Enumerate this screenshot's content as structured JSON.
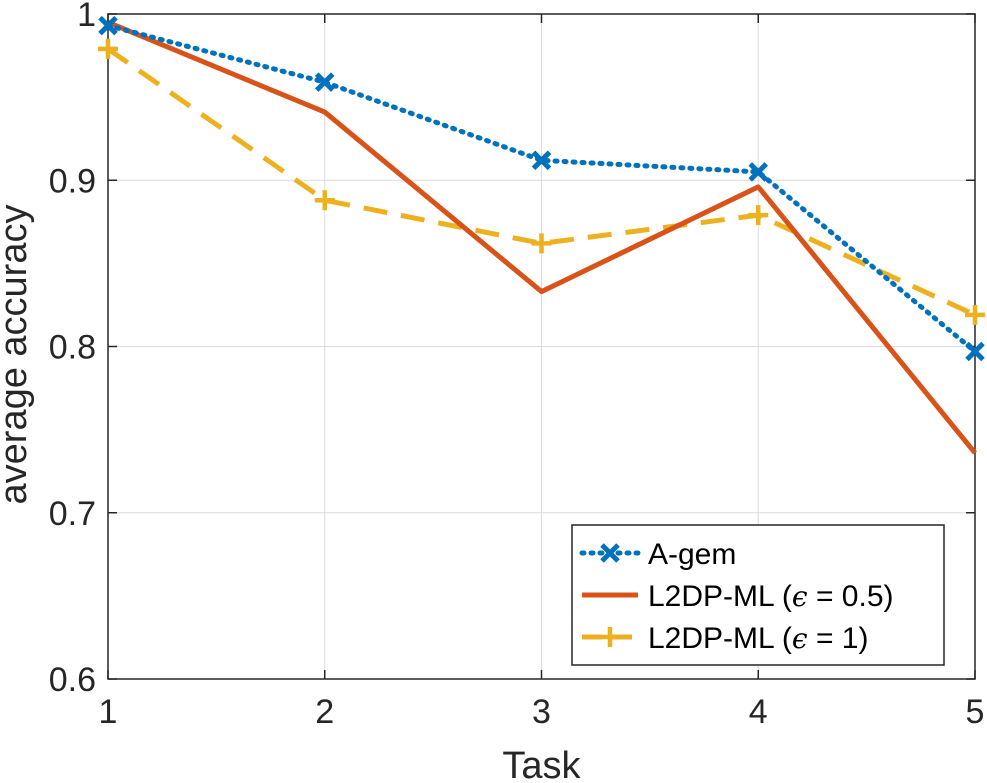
{
  "chart_data": {
    "type": "line",
    "title": "",
    "xlabel": "Task",
    "ylabel": "average accuracy",
    "x": [
      1,
      2,
      3,
      4,
      5
    ],
    "xlim": [
      1,
      5
    ],
    "ylim": [
      0.6,
      1.0
    ],
    "x_ticks": [
      "1",
      "2",
      "3",
      "4",
      "5"
    ],
    "y_ticks": [
      "0.6",
      "0.7",
      "0.8",
      "0.9",
      "1"
    ],
    "grid": true,
    "legend_position": "bottom-right",
    "series": [
      {
        "name": "A-gem",
        "legend_parts": {
          "pre": "A-gem",
          "eps": "",
          "post": ""
        },
        "values": [
          0.993,
          0.959,
          0.912,
          0.905,
          0.797
        ],
        "color": "#0072BD",
        "line_style": "dotted",
        "marker": "x"
      },
      {
        "name": "L2DP-ML (ε = 0.5)",
        "legend_parts": {
          "pre": "L2DP-ML (",
          "eps": "ϵ",
          "post": " = 0.5)"
        },
        "values": [
          0.995,
          0.941,
          0.833,
          0.896,
          0.736
        ],
        "color": "#D95319",
        "line_style": "solid",
        "marker": "none"
      },
      {
        "name": "L2DP-ML (ε = 1)",
        "legend_parts": {
          "pre": "L2DP-ML (",
          "eps": "ϵ",
          "post": " = 1)"
        },
        "values": [
          0.979,
          0.888,
          0.862,
          0.879,
          0.819
        ],
        "color": "#EDB120",
        "line_style": "dashed",
        "marker": "+"
      }
    ]
  }
}
